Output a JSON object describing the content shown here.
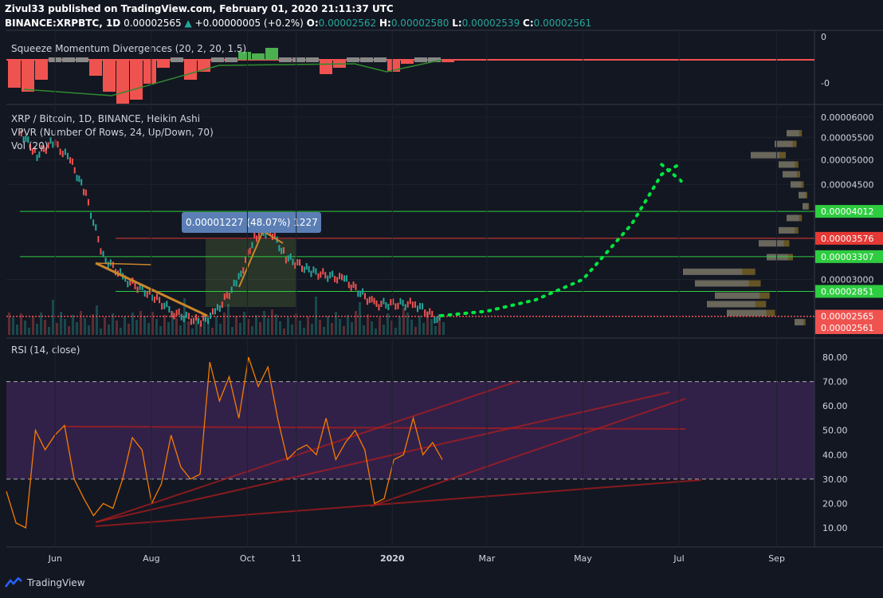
{
  "header": {
    "publisher_line": "Zivul33 published on TradingView.com, February 01, 2020 21:11:37 UTC",
    "symbol": "BINANCE:XRPBTC, 1D",
    "last": "0.00002565",
    "change": "+0.00000005 (+0.2%)",
    "o_label": "O:",
    "o": "0.00002562",
    "h_label": "H:",
    "h": "0.00002580",
    "l_label": "L:",
    "l": "0.00002539",
    "c_label": "C:",
    "c": "0.00002561"
  },
  "panes": {
    "squeeze": {
      "title": "Squeeze Momentum Divergences (20, 2, 20, 1.5)",
      "axis_labels": [
        "0",
        "-0"
      ]
    },
    "main": {
      "title": "XRP / Bitcoin, 1D, BINANCE, Heikin Ashi",
      "vpvr": "VPVR (Number Of Rows, 24, Up/Down, 70)",
      "vol": "Vol (20)",
      "measure": "0.00001227 (48.07%) 1227"
    },
    "rsi": {
      "title": "RSI (14, close)"
    }
  },
  "footer": {
    "brand": "TradingView"
  },
  "colors": {
    "bg": "#131722",
    "up": "#26a69a",
    "down": "#ef5350",
    "rsi": "#f57c00",
    "band": "#4a2a6a",
    "green_line": "#2ecc40",
    "red_line": "#e53935"
  },
  "chart_data": [
    {
      "type": "line",
      "title": "XRP / Bitcoin, 1D, BINANCE, Heikin Ashi",
      "x": [
        "2019-05-10",
        "2019-05-20",
        "2019-05-30",
        "2019-06-10",
        "2019-06-20",
        "2019-07-01",
        "2019-07-15",
        "2019-08-01",
        "2019-08-15",
        "2019-09-01",
        "2019-09-10",
        "2019-09-25",
        "2019-10-05",
        "2019-10-15",
        "2019-10-25",
        "2019-11-10",
        "2019-12-01",
        "2019-12-20",
        "2020-01-01",
        "2020-01-15",
        "2020-02-01"
      ],
      "y": [
        5.6e-05,
        5.1e-05,
        5.4e-05,
        5e-05,
        4.3e-05,
        3.3e-05,
        3e-05,
        2.8e-05,
        2.6e-05,
        2.5e-05,
        2.6e-05,
        3e-05,
        3.6e-05,
        3.7e-05,
        3.3e-05,
        3.1e-05,
        3e-05,
        2.7e-05,
        2.7e-05,
        2.7e-05,
        2.5e-05
      ],
      "price_levels": [
        {
          "value": "0.00004012",
          "color": "#2ecc40"
        },
        {
          "value": "0.00003576",
          "color": "#e53935"
        },
        {
          "value": "0.00003307",
          "color": "#2ecc40"
        },
        {
          "value": "0.00002851",
          "color": "#2ecc40"
        },
        {
          "value": "0.00002565",
          "color": "#ef5350"
        },
        {
          "value": "0.00002561",
          "color": "#ef5350"
        }
      ],
      "y_ticks": [
        "0.00006000",
        "0.00005500",
        "0.00005000",
        "0.00004500",
        "0.00003000"
      ],
      "x_ticks": [
        "Jun",
        "Aug",
        "Oct",
        "11",
        "2020",
        "Mar",
        "May",
        "Jul",
        "Sep"
      ],
      "projection_x": [
        "2020-02-01",
        "2020-03-01",
        "2020-04-01",
        "2020-05-01",
        "2020-06-01",
        "2020-06-20",
        "2020-07-01"
      ],
      "projection_y": [
        2.57e-05,
        2.62e-05,
        2.75e-05,
        3e-05,
        3.8e-05,
        4.7e-05,
        4.9e-05
      ]
    },
    {
      "type": "line",
      "title": "RSI (14, close)",
      "y_ticks": [
        "80.00",
        "70.00",
        "60.00",
        "50.00",
        "40.00",
        "30.00",
        "20.00",
        "10.00"
      ],
      "ylim": [
        10,
        80
      ],
      "band": [
        30,
        70
      ],
      "values": [
        25,
        12,
        10,
        50,
        42,
        48,
        52,
        30,
        22,
        15,
        20,
        18,
        30,
        47,
        42,
        20,
        28,
        48,
        35,
        30,
        32,
        78,
        62,
        72,
        55,
        80,
        68,
        76,
        55,
        38,
        42,
        44,
        40,
        55,
        38,
        45,
        50,
        42,
        20,
        22,
        38,
        40,
        55,
        40,
        45,
        38
      ]
    }
  ]
}
